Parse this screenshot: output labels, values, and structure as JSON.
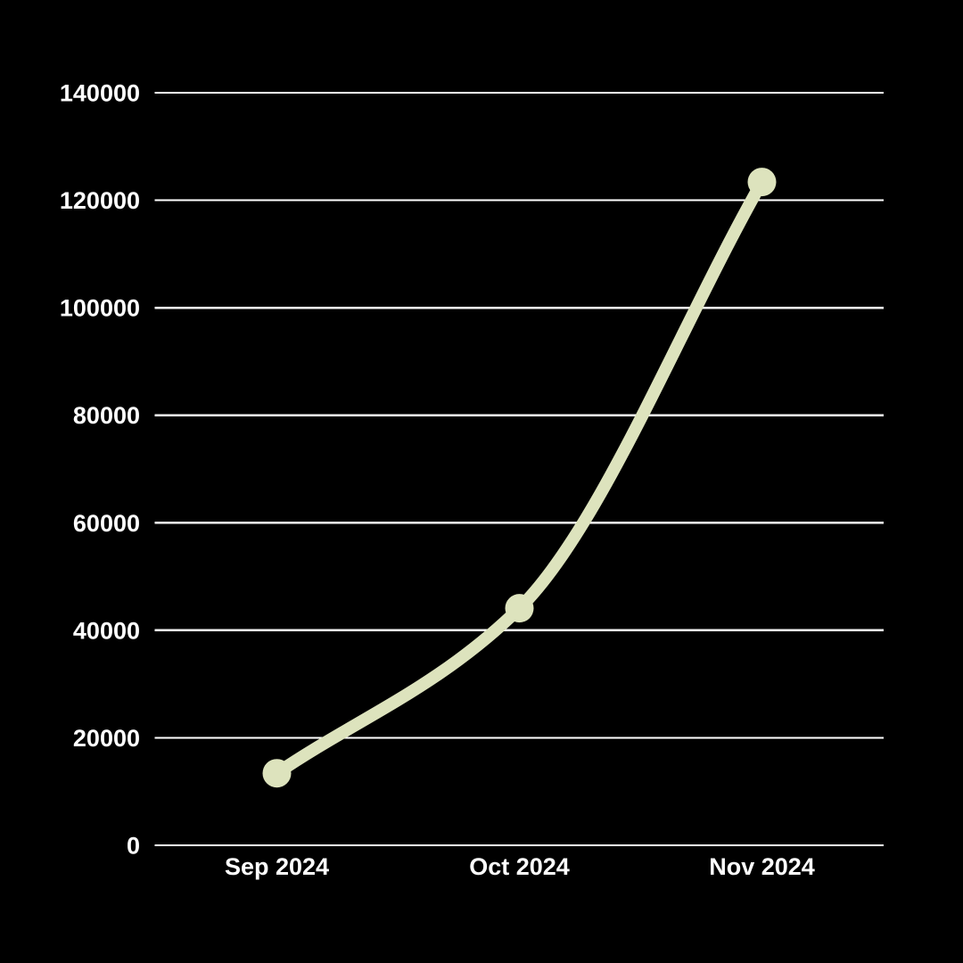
{
  "chart_data": {
    "type": "line",
    "categories": [
      "Sep 2024",
      "Oct 2024",
      "Nov 2024"
    ],
    "values": [
      13400,
      44100,
      123400
    ],
    "title": "",
    "xlabel": "",
    "ylabel": "",
    "ylim": [
      0,
      140000
    ],
    "yticks": [
      0,
      20000,
      40000,
      60000,
      80000,
      100000,
      120000,
      140000
    ],
    "grid": true,
    "legend_position": "none",
    "line_shape": "smooth-monotone",
    "colors": {
      "background": "#000000",
      "line": "#dde3bd",
      "point": "#dde3bd",
      "gridline": "#ffffff",
      "label": "#ffffff"
    }
  }
}
